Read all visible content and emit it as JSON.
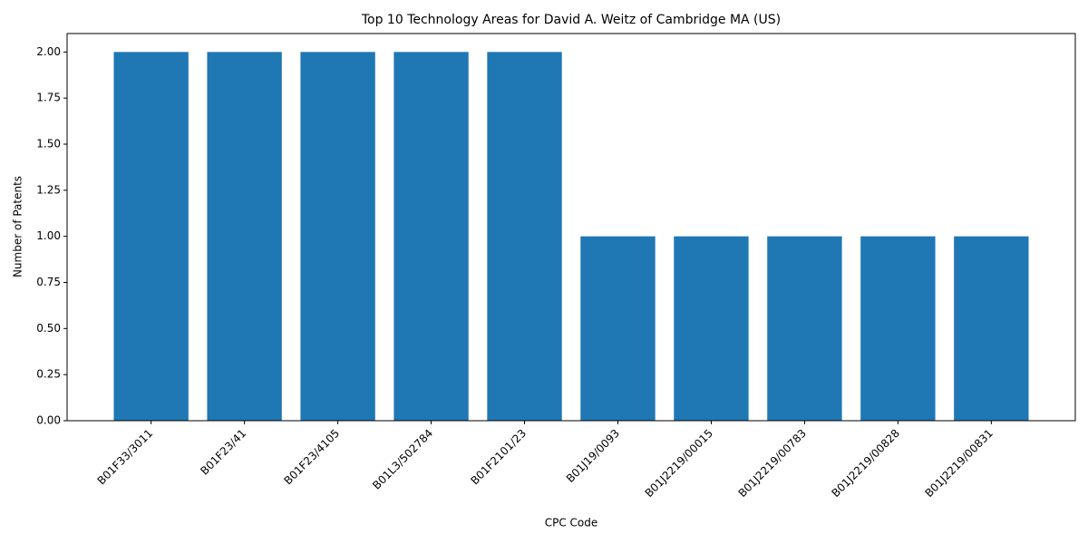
{
  "chart_data": {
    "type": "bar",
    "title": "Top 10 Technology Areas for David A. Weitz of Cambridge MA (US)",
    "x_label": "CPC Code",
    "y_label": "Number of Patents",
    "categories": [
      "B01F33/3011",
      "B01F23/41",
      "B01F23/4105",
      "B01L3/502784",
      "B01F2101/23",
      "B01J19/0093",
      "B01J2219/00015",
      "B01J2219/00783",
      "B01J2219/00828",
      "B01J2219/00831"
    ],
    "values": [
      2,
      2,
      2,
      2,
      2,
      1,
      1,
      1,
      1,
      1
    ],
    "color": "#1f77b4",
    "ylim": [
      0,
      2.1
    ],
    "yticks": [
      {
        "value": 0,
        "label": "0.00"
      },
      {
        "value": 0.25,
        "label": "0.25"
      },
      {
        "value": 0.5,
        "label": "0.50"
      },
      {
        "value": 0.75,
        "label": "0.75"
      },
      {
        "value": 1,
        "label": "1.00"
      },
      {
        "value": 1.25,
        "label": "1.25"
      },
      {
        "value": 1.5,
        "label": "1.50"
      },
      {
        "value": 1.75,
        "label": "1.75"
      },
      {
        "value": 2,
        "label": "2.00"
      }
    ],
    "grid": false
  }
}
